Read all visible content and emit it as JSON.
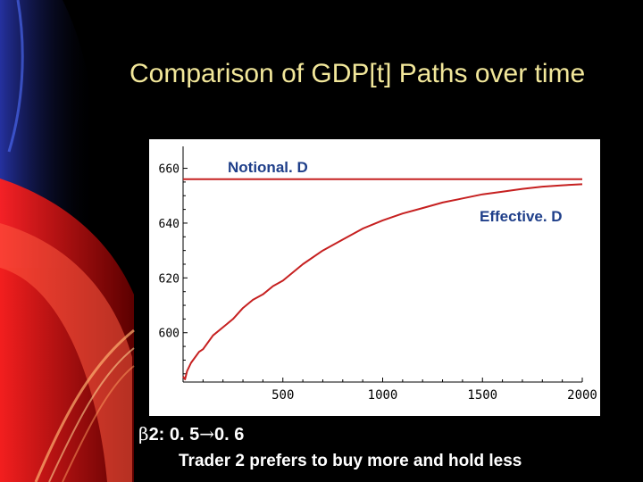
{
  "slide": {
    "title": "Comparison of GDP[t] Paths over time",
    "beta_symbol": "β",
    "beta_label": "2: 0. 5 ",
    "arrow_symbol": "→",
    "beta_to": "0. 6",
    "caption": "Trader 2 prefers to buy more and hold less"
  },
  "colors": {
    "title": "#f2e79a",
    "series_line": "#c62020",
    "series_label": "#1f3f8a"
  },
  "chart_data": {
    "type": "line",
    "title": "",
    "xlabel": "",
    "ylabel": "",
    "xlim": [
      0,
      2000
    ],
    "ylim": [
      582,
      668
    ],
    "x_ticks": [
      500,
      1000,
      1500,
      2000
    ],
    "y_ticks": [
      600,
      620,
      640,
      660
    ],
    "grid": false,
    "series": [
      {
        "name": "Notional. D",
        "x": [
          0,
          2000
        ],
        "y": [
          656,
          656
        ]
      },
      {
        "name": "Effective. D",
        "x": [
          0,
          10,
          20,
          40,
          60,
          80,
          100,
          150,
          200,
          250,
          300,
          350,
          400,
          450,
          500,
          600,
          700,
          800,
          900,
          1000,
          1100,
          1200,
          1300,
          1400,
          1500,
          1600,
          1700,
          1800,
          1900,
          2000
        ],
        "y": [
          584,
          583,
          586,
          589,
          591,
          593,
          594,
          599,
          602,
          605,
          609,
          612,
          614,
          617,
          619,
          625,
          630,
          634,
          638,
          641,
          643.5,
          645.5,
          647.5,
          649,
          650.5,
          651.5,
          652.5,
          653.3,
          653.8,
          654.2
        ]
      }
    ]
  }
}
